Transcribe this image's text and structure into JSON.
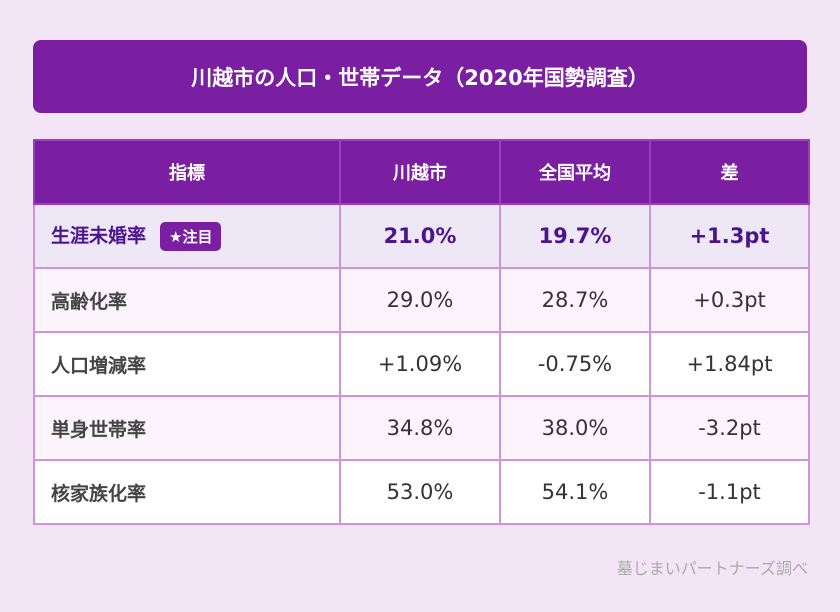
{
  "title": "川越市の人口・世帯データ（2020年国勢調査）",
  "table": {
    "headers": [
      "指標",
      "川越市",
      "全国平均",
      "差"
    ],
    "rows": [
      {
        "label": "生涯未婚率",
        "badge": "★注目",
        "kawagoe": "21.0%",
        "national": "19.7%",
        "diff": "+1.3pt"
      },
      {
        "label": "高齢化率",
        "kawagoe": "29.0%",
        "national": "28.7%",
        "diff": "+0.3pt"
      },
      {
        "label": "人口増減率",
        "kawagoe": "+1.09%",
        "national": "-0.75%",
        "diff": "+1.84pt"
      },
      {
        "label": "単身世帯率",
        "kawagoe": "34.8%",
        "national": "38.0%",
        "diff": "-3.2pt"
      },
      {
        "label": "核家族化率",
        "kawagoe": "53.0%",
        "national": "54.1%",
        "diff": "-1.1pt"
      }
    ]
  },
  "source": "墓じまいパートナーズ調べ",
  "colors": {
    "accent": "#7b1fa2",
    "background": "#f3e5f5",
    "border": "#ce93d8",
    "highlight_text": "#4a148c"
  }
}
